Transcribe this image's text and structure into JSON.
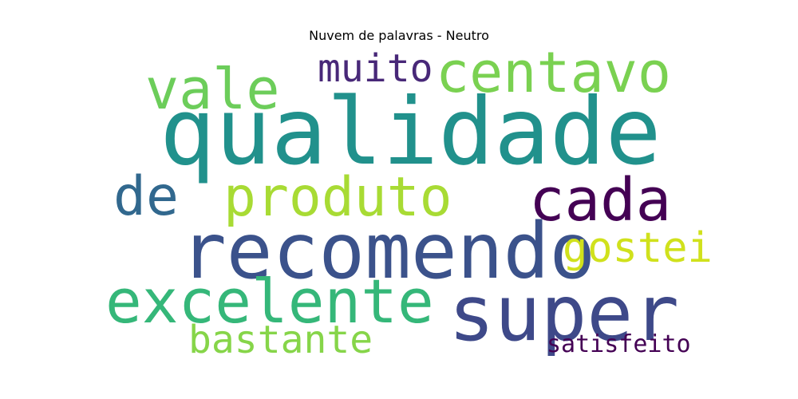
{
  "title": "Nuvem de palavras - Neutro",
  "words": [
    {
      "key": "qualidade",
      "text": "qualidade",
      "color": "#21918c"
    },
    {
      "key": "recomendo",
      "text": "recomendo",
      "color": "#3b528b"
    },
    {
      "key": "super",
      "text": "super",
      "color": "#3e4989"
    },
    {
      "key": "excelente",
      "text": "excelente",
      "color": "#35b779"
    },
    {
      "key": "produto",
      "text": "produto",
      "color": "#a8db34"
    },
    {
      "key": "cada",
      "text": "cada",
      "color": "#440154"
    },
    {
      "key": "centavo",
      "text": "centavo",
      "color": "#7ad151"
    },
    {
      "key": "vale",
      "text": "vale",
      "color": "#6ccd5a"
    },
    {
      "key": "de",
      "text": "de",
      "color": "#31688e"
    },
    {
      "key": "muito",
      "text": "muito",
      "color": "#482878"
    },
    {
      "key": "gostei",
      "text": "gostei",
      "color": "#d0e11c"
    },
    {
      "key": "bastante",
      "text": "bastante",
      "color": "#86d549"
    },
    {
      "key": "satisfeito",
      "text": "satisfeito",
      "color": "#440154"
    }
  ]
}
